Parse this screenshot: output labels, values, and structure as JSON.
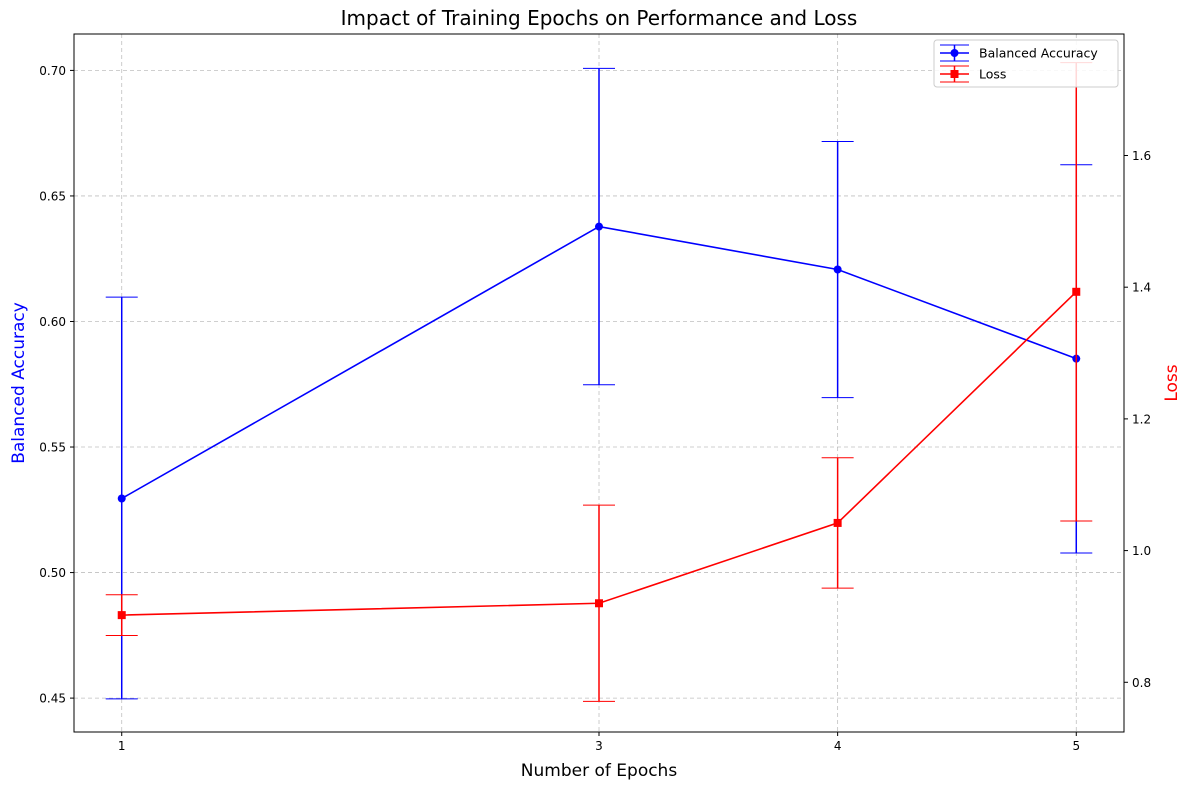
{
  "chart_data": {
    "type": "line",
    "title": "Impact of Training Epochs on Performance and Loss",
    "xlabel": "Number of Epochs",
    "ylabel_left": "Balanced Accuracy",
    "ylabel_right": "Loss",
    "x": [
      1,
      3,
      4,
      5
    ],
    "x_ticks": [
      "1",
      "3",
      "4",
      "5"
    ],
    "xlim": [
      0.8,
      5.2
    ],
    "ylim_left": [
      0.4365,
      0.7145
    ],
    "ylim_right": [
      0.7245,
      1.7845
    ],
    "yticks_left": [
      "0.45",
      "0.50",
      "0.55",
      "0.60",
      "0.65",
      "0.70"
    ],
    "yticks_right": [
      "0.8",
      "1.0",
      "1.2",
      "1.4",
      "1.6"
    ],
    "grid": true,
    "legend_position": "top-right",
    "series": [
      {
        "name": "Balanced Accuracy",
        "axis": "left",
        "color": "#0000ff",
        "marker": "circle",
        "values": [
          0.5295,
          0.6378,
          0.6207,
          0.5852
        ],
        "lower": [
          0.4497,
          0.5748,
          0.5697,
          0.5078
        ],
        "upper": [
          0.6097,
          0.7008,
          0.6717,
          0.6624
        ]
      },
      {
        "name": "Loss",
        "axis": "right",
        "color": "#ff0000",
        "marker": "square",
        "values": [
          0.902,
          0.92,
          1.042,
          1.393
        ],
        "lower": [
          0.871,
          0.771,
          0.943,
          1.045
        ],
        "upper": [
          0.933,
          1.069,
          1.141,
          1.741
        ]
      }
    ]
  }
}
